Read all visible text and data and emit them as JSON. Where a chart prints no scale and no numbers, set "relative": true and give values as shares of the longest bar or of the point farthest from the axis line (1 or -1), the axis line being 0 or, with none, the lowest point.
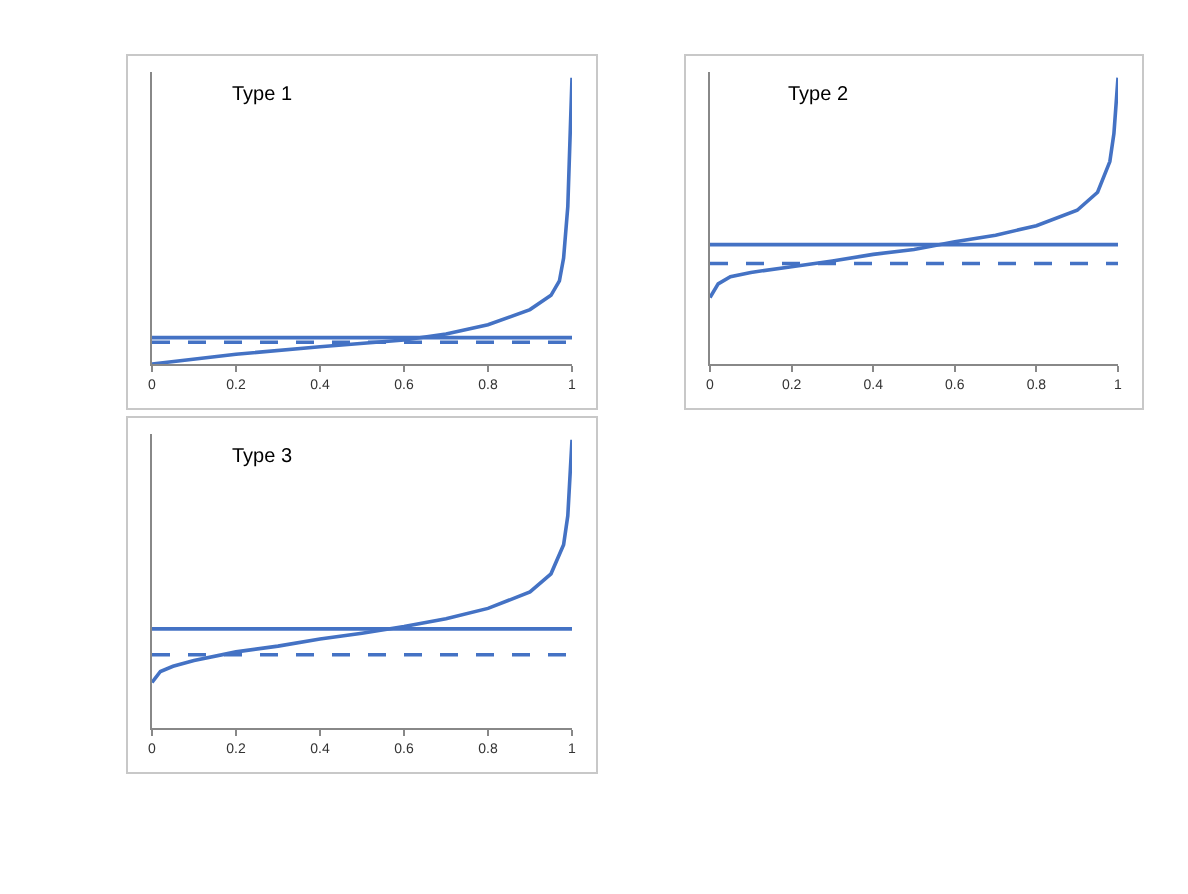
{
  "chart_data": [
    {
      "type": "line",
      "relative": true,
      "annotations": [
        "Type 1"
      ],
      "xlim": [
        0,
        1
      ],
      "xticks": [
        0,
        0.2,
        0.4,
        0.6,
        0.8,
        1
      ],
      "tick_labels": "x",
      "grid": false,
      "marker": "none",
      "line_style": "solid",
      "ref_lines": [
        {
          "axis": "y",
          "value": 0.092,
          "color": "#4472c4",
          "line_style": "solid"
        },
        {
          "axis": "y",
          "value": 0.076,
          "color": "#4472c4",
          "line_style": "dashed"
        }
      ],
      "series": [
        {
          "color": "#4472c4",
          "x": [
            0,
            0.2,
            0.4,
            0.6,
            0.7,
            0.8,
            0.9,
            0.95,
            0.97,
            0.98,
            0.99,
            1
          ],
          "values": [
            0,
            0.034,
            0.06,
            0.084,
            0.105,
            0.137,
            0.19,
            0.24,
            0.29,
            0.37,
            0.55,
            1
          ]
        }
      ]
    },
    {
      "type": "line",
      "relative": true,
      "annotations": [
        "Type 2"
      ],
      "xlim": [
        0,
        1
      ],
      "xticks": [
        0,
        0.2,
        0.4,
        0.6,
        0.8,
        1
      ],
      "tick_labels": "x",
      "grid": false,
      "marker": "none",
      "line_style": "solid",
      "ref_lines": [
        {
          "axis": "y",
          "value": 0.417,
          "color": "#4472c4",
          "line_style": "solid"
        },
        {
          "axis": "y",
          "value": 0.351,
          "color": "#4472c4",
          "line_style": "dashed"
        }
      ],
      "series": [
        {
          "color": "#4472c4",
          "x": [
            0,
            0.02,
            0.05,
            0.1,
            0.2,
            0.3,
            0.4,
            0.5,
            0.6,
            0.7,
            0.8,
            0.9,
            0.95,
            0.98,
            0.99,
            1
          ],
          "values": [
            0.232,
            0.28,
            0.305,
            0.32,
            0.34,
            0.36,
            0.383,
            0.4,
            0.427,
            0.45,
            0.483,
            0.537,
            0.6,
            0.707,
            0.805,
            1
          ]
        }
      ]
    },
    {
      "type": "line",
      "relative": true,
      "annotations": [
        "Type 3"
      ],
      "xlim": [
        0,
        1
      ],
      "xticks": [
        0,
        0.2,
        0.4,
        0.6,
        0.8,
        1
      ],
      "tick_labels": "x",
      "grid": false,
      "marker": "none",
      "line_style": "solid",
      "ref_lines": [
        {
          "axis": "y",
          "value": 0.344,
          "color": "#4472c4",
          "line_style": "solid"
        },
        {
          "axis": "y",
          "value": 0.254,
          "color": "#4472c4",
          "line_style": "dashed"
        }
      ],
      "series": [
        {
          "color": "#4472c4",
          "x": [
            0,
            0.02,
            0.05,
            0.1,
            0.2,
            0.3,
            0.4,
            0.5,
            0.6,
            0.7,
            0.8,
            0.9,
            0.95,
            0.98,
            0.99,
            1
          ],
          "values": [
            0.158,
            0.196,
            0.214,
            0.234,
            0.264,
            0.284,
            0.309,
            0.329,
            0.352,
            0.379,
            0.415,
            0.472,
            0.535,
            0.636,
            0.736,
            1
          ]
        }
      ]
    }
  ]
}
